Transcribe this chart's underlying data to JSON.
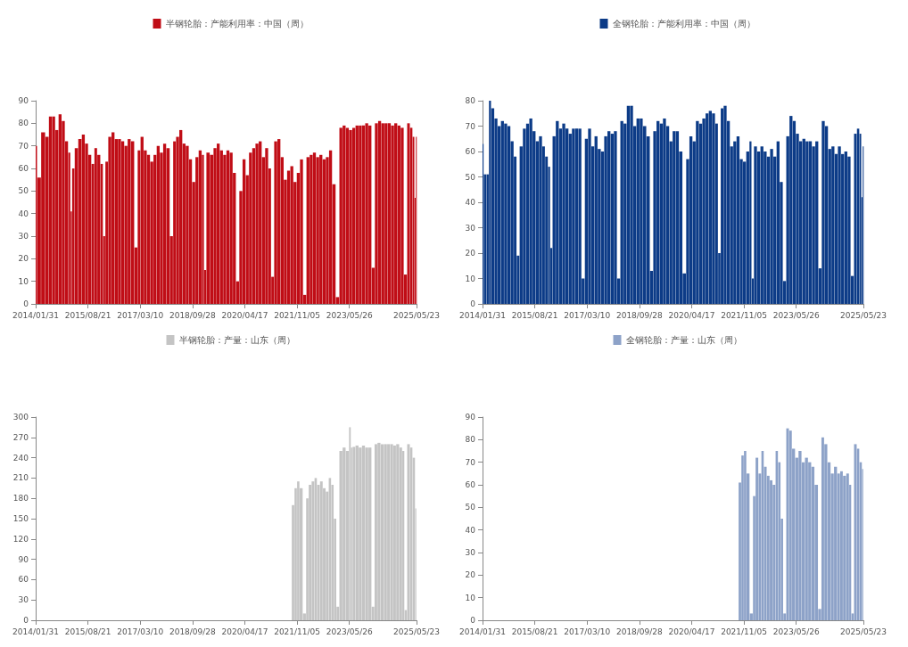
{
  "chart_data": [
    {
      "type": "bar",
      "legend": "top",
      "xlim": [
        "2014-01-31",
        "2025-05-23"
      ],
      "xticks": [
        {
          "value": "2014-01-31",
          "label": "2014/01/31"
        },
        {
          "value": "2015-08-21",
          "label": "2015/08/21"
        },
        {
          "value": "2017-03-10",
          "label": "2017/03/10"
        },
        {
          "value": "2018-09-28",
          "label": "2018/09/28"
        },
        {
          "value": "2020-04-17",
          "label": "2020/04/17"
        },
        {
          "value": "2021-11-05",
          "label": "2021/11/05"
        },
        {
          "value": "2023-05-26",
          "label": "2023/05/26"
        },
        {
          "value": "2025-05-23",
          "label": "2025/05/23"
        }
      ],
      "ylim": [
        0,
        90
      ],
      "yticks": [
        0,
        10,
        20,
        30,
        40,
        50,
        60,
        70,
        80,
        90
      ],
      "series": [
        {
          "name": "半钢轮胎：产能利用率：中国（周）",
          "color": "#c00d16",
          "x": [
            "2014-01-31",
            "2014-03-07",
            "2014-04-25",
            "2014-06-06",
            "2014-07-11",
            "2014-08-15",
            "2014-09-19",
            "2014-10-24",
            "2014-11-28",
            "2015-01-02",
            "2015-02-06",
            "2015-02-20",
            "2015-03-13",
            "2015-04-17",
            "2015-05-29",
            "2015-07-03",
            "2015-08-07",
            "2015-09-11",
            "2015-10-16",
            "2015-11-13",
            "2015-12-18",
            "2016-01-22",
            "2016-02-12",
            "2016-03-11",
            "2016-04-15",
            "2016-05-20",
            "2016-06-24",
            "2016-07-29",
            "2016-09-02",
            "2016-10-07",
            "2016-11-11",
            "2016-12-16",
            "2017-01-27",
            "2017-02-24",
            "2017-03-31",
            "2017-05-05",
            "2017-06-09",
            "2017-07-14",
            "2017-08-18",
            "2017-09-22",
            "2017-10-27",
            "2017-12-01",
            "2018-01-05",
            "2018-02-16",
            "2018-03-16",
            "2018-04-20",
            "2018-05-25",
            "2018-06-29",
            "2018-08-03",
            "2018-09-07",
            "2018-10-12",
            "2018-11-16",
            "2018-12-21",
            "2019-01-25",
            "2019-02-08",
            "2019-03-15",
            "2019-04-26",
            "2019-05-31",
            "2019-07-05",
            "2019-08-09",
            "2019-09-13",
            "2019-10-18",
            "2019-11-22",
            "2019-12-27",
            "2020-01-31",
            "2020-03-06",
            "2020-04-10",
            "2020-05-15",
            "2020-06-19",
            "2020-07-24",
            "2020-08-28",
            "2020-10-02",
            "2020-11-06",
            "2020-12-11",
            "2021-01-15",
            "2021-02-12",
            "2021-03-19",
            "2021-04-23",
            "2021-05-28",
            "2021-07-02",
            "2021-08-06",
            "2021-09-10",
            "2021-10-15",
            "2021-11-19",
            "2021-12-24",
            "2022-01-28",
            "2022-03-04",
            "2022-04-08",
            "2022-05-13",
            "2022-06-17",
            "2022-07-22",
            "2022-08-26",
            "2022-09-30",
            "2022-11-04",
            "2022-12-09",
            "2023-01-20",
            "2023-02-24",
            "2023-03-31",
            "2023-05-05",
            "2023-06-09",
            "2023-07-14",
            "2023-08-18",
            "2023-09-22",
            "2023-10-27",
            "2023-12-01",
            "2024-01-05",
            "2024-02-09",
            "2024-03-15",
            "2024-04-19",
            "2024-05-24",
            "2024-06-28",
            "2024-08-02",
            "2024-09-06",
            "2024-10-11",
            "2024-11-15",
            "2024-12-20",
            "2025-01-24",
            "2025-02-28",
            "2025-03-28",
            "2025-04-25",
            "2025-05-09",
            "2025-05-23"
          ],
          "values": [
            70,
            56,
            76,
            74,
            83,
            83,
            77,
            84,
            81,
            72,
            67,
            41,
            60,
            69,
            73,
            75,
            71,
            66,
            62,
            69,
            66,
            62,
            30,
            63,
            74,
            76,
            73,
            73,
            72,
            70,
            73,
            72,
            25,
            68,
            74,
            68,
            66,
            63,
            66,
            70,
            67,
            71,
            69,
            30,
            72,
            74,
            77,
            71,
            70,
            64,
            54,
            65,
            68,
            66,
            15,
            67,
            66,
            69,
            71,
            68,
            66,
            68,
            67,
            58,
            10,
            50,
            64,
            57,
            67,
            69,
            71,
            72,
            65,
            69,
            60,
            12,
            72,
            73,
            65,
            55,
            59,
            61,
            54,
            58,
            64,
            4,
            65,
            66,
            67,
            65,
            66,
            64,
            65,
            68,
            53,
            3,
            78,
            79,
            78,
            77,
            78,
            79,
            79,
            79,
            80,
            79,
            16,
            80,
            81,
            80,
            80,
            80,
            79,
            80,
            79,
            78,
            13,
            80,
            78,
            74,
            47,
            74
          ]
        }
      ]
    },
    {
      "type": "bar",
      "legend": "top",
      "xlim": [
        "2014-01-31",
        "2025-05-23"
      ],
      "xticks": [
        {
          "value": "2014-01-31",
          "label": "2014/01/31"
        },
        {
          "value": "2015-08-21",
          "label": "2015/08/21"
        },
        {
          "value": "2017-03-10",
          "label": "2017/03/10"
        },
        {
          "value": "2018-09-28",
          "label": "2018/09/28"
        },
        {
          "value": "2020-04-17",
          "label": "2020/04/17"
        },
        {
          "value": "2021-11-05",
          "label": "2021/11/05"
        },
        {
          "value": "2023-05-26",
          "label": "2023/05/26"
        },
        {
          "value": "2025-05-23",
          "label": "2025/05/23"
        }
      ],
      "ylim": [
        0,
        80
      ],
      "yticks": [
        0,
        10,
        20,
        30,
        40,
        50,
        60,
        70,
        80
      ],
      "series": [
        {
          "name": "全钢轮胎：产能利用率：中国（周）",
          "color": "#0c3b87",
          "x": [
            "2014-01-31",
            "2014-02-28",
            "2014-04-04",
            "2014-04-18",
            "2014-05-23",
            "2014-06-27",
            "2014-08-01",
            "2014-09-05",
            "2014-10-10",
            "2014-11-14",
            "2014-12-19",
            "2015-01-23",
            "2015-02-20",
            "2015-03-27",
            "2015-05-01",
            "2015-06-05",
            "2015-07-10",
            "2015-08-14",
            "2015-09-18",
            "2015-10-23",
            "2015-11-27",
            "2015-12-25",
            "2016-01-29",
            "2016-02-12",
            "2016-03-18",
            "2016-04-22",
            "2016-05-27",
            "2016-07-01",
            "2016-08-05",
            "2016-09-09",
            "2016-10-14",
            "2016-11-18",
            "2016-12-23",
            "2017-01-27",
            "2017-03-03",
            "2017-04-07",
            "2017-05-12",
            "2017-06-16",
            "2017-07-21",
            "2017-08-25",
            "2017-09-29",
            "2017-11-03",
            "2017-12-08",
            "2018-01-12",
            "2018-02-16",
            "2018-03-23",
            "2018-04-27",
            "2018-06-01",
            "2018-07-06",
            "2018-08-10",
            "2018-09-14",
            "2018-10-19",
            "2018-11-23",
            "2019-01-04",
            "2019-02-08",
            "2019-03-15",
            "2019-04-19",
            "2019-05-24",
            "2019-06-28",
            "2019-08-02",
            "2019-09-06",
            "2019-10-11",
            "2019-11-15",
            "2019-12-20",
            "2020-01-31",
            "2020-03-06",
            "2020-04-10",
            "2020-05-15",
            "2020-06-19",
            "2020-07-24",
            "2020-08-28",
            "2020-10-02",
            "2020-11-06",
            "2020-12-11",
            "2021-01-15",
            "2021-02-12",
            "2021-03-12",
            "2021-04-16",
            "2021-05-21",
            "2021-06-25",
            "2021-07-30",
            "2021-09-03",
            "2021-10-08",
            "2021-11-12",
            "2021-12-17",
            "2022-01-21",
            "2022-02-04",
            "2022-03-11",
            "2022-04-15",
            "2022-05-20",
            "2022-06-24",
            "2022-07-29",
            "2022-09-02",
            "2022-10-07",
            "2022-11-11",
            "2022-12-16",
            "2023-01-20",
            "2023-02-24",
            "2023-03-31",
            "2023-05-05",
            "2023-06-09",
            "2023-07-14",
            "2023-08-18",
            "2023-09-22",
            "2023-10-27",
            "2023-12-01",
            "2024-01-05",
            "2024-02-09",
            "2024-03-15",
            "2024-04-19",
            "2024-05-24",
            "2024-06-28",
            "2024-08-02",
            "2024-09-06",
            "2024-10-11",
            "2024-11-15",
            "2024-12-20",
            "2025-01-24",
            "2025-02-28",
            "2025-03-28",
            "2025-04-25",
            "2025-05-09",
            "2025-05-23"
          ],
          "values": [
            63,
            51,
            51,
            80,
            77,
            73,
            70,
            72,
            71,
            70,
            64,
            58,
            19,
            62,
            69,
            71,
            73,
            68,
            64,
            66,
            62,
            58,
            54,
            22,
            66,
            72,
            69,
            71,
            69,
            67,
            69,
            69,
            69,
            10,
            65,
            69,
            62,
            66,
            61,
            60,
            66,
            68,
            67,
            68,
            10,
            72,
            71,
            78,
            78,
            70,
            73,
            73,
            70,
            66,
            13,
            68,
            72,
            71,
            73,
            70,
            64,
            68,
            68,
            60,
            12,
            57,
            66,
            64,
            72,
            71,
            73,
            75,
            76,
            75,
            71,
            20,
            77,
            78,
            72,
            62,
            64,
            66,
            57,
            56,
            60,
            64,
            10,
            62,
            60,
            62,
            60,
            58,
            61,
            58,
            64,
            48,
            9,
            66,
            74,
            72,
            67,
            64,
            65,
            64,
            64,
            62,
            64,
            14,
            72,
            70,
            61,
            62,
            59,
            62,
            59,
            60,
            58,
            11,
            67,
            69,
            67,
            42,
            62
          ]
        }
      ]
    },
    {
      "type": "bar",
      "legend": "top",
      "xlim": [
        "2014-01-31",
        "2025-05-23"
      ],
      "xticks": [
        {
          "value": "2014-01-31",
          "label": "2014/01/31"
        },
        {
          "value": "2015-08-21",
          "label": "2015/08/21"
        },
        {
          "value": "2017-03-10",
          "label": "2017/03/10"
        },
        {
          "value": "2018-09-28",
          "label": "2018/09/28"
        },
        {
          "value": "2020-04-17",
          "label": "2020/04/17"
        },
        {
          "value": "2021-11-05",
          "label": "2021/11/05"
        },
        {
          "value": "2023-05-26",
          "label": "2023/05/26"
        },
        {
          "value": "2025-05-23",
          "label": "2025/05/23"
        }
      ],
      "ylim": [
        0,
        300
      ],
      "yticks": [
        0,
        30,
        60,
        90,
        120,
        150,
        180,
        210,
        240,
        270,
        300
      ],
      "series": [
        {
          "name": "半钢轮胎：产量：山东（周）",
          "color": "#c4c4c4",
          "x": [
            "2021-09-24",
            "2021-10-22",
            "2021-11-19",
            "2021-12-17",
            "2022-01-28",
            "2022-02-25",
            "2022-03-25",
            "2022-04-29",
            "2022-05-27",
            "2022-06-24",
            "2022-07-29",
            "2022-08-26",
            "2022-09-30",
            "2022-10-28",
            "2022-11-25",
            "2022-12-23",
            "2023-01-20",
            "2023-02-24",
            "2023-03-31",
            "2023-05-05",
            "2023-06-09",
            "2023-06-16",
            "2023-07-14",
            "2023-08-18",
            "2023-09-22",
            "2023-10-27",
            "2023-12-01",
            "2024-01-05",
            "2024-02-09",
            "2024-03-08",
            "2024-04-12",
            "2024-05-17",
            "2024-06-21",
            "2024-07-26",
            "2024-08-30",
            "2024-09-27",
            "2024-11-01",
            "2024-12-06",
            "2025-01-03",
            "2025-01-24",
            "2025-02-28",
            "2025-03-28",
            "2025-04-25",
            "2025-05-23"
          ],
          "values": [
            170,
            195,
            205,
            195,
            10,
            180,
            200,
            205,
            210,
            200,
            205,
            195,
            190,
            210,
            200,
            150,
            20,
            250,
            255,
            250,
            285,
            255,
            256,
            258,
            255,
            258,
            255,
            255,
            20,
            260,
            262,
            260,
            260,
            260,
            260,
            258,
            260,
            255,
            250,
            15,
            260,
            255,
            240,
            165
          ]
        }
      ]
    },
    {
      "type": "bar",
      "legend": "top",
      "xlim": [
        "2014-01-31",
        "2025-05-23"
      ],
      "xticks": [
        {
          "value": "2014-01-31",
          "label": "2014/01/31"
        },
        {
          "value": "2015-08-21",
          "label": "2015/08/21"
        },
        {
          "value": "2017-03-10",
          "label": "2017/03/10"
        },
        {
          "value": "2018-09-28",
          "label": "2018/09/28"
        },
        {
          "value": "2020-04-17",
          "label": "2020/04/17"
        },
        {
          "value": "2021-11-05",
          "label": "2021/11/05"
        },
        {
          "value": "2023-05-26",
          "label": "2023/05/26"
        },
        {
          "value": "2025-05-23",
          "label": "2025/05/23"
        }
      ],
      "ylim": [
        0,
        90
      ],
      "yticks": [
        0,
        10,
        20,
        30,
        40,
        50,
        60,
        70,
        80,
        90
      ],
      "series": [
        {
          "name": "全钢轮胎：产量：山东（周）",
          "color": "#8da2c8",
          "x": [
            "2021-09-24",
            "2021-10-22",
            "2021-11-19",
            "2021-12-17",
            "2022-01-28",
            "2022-02-25",
            "2022-03-25",
            "2022-04-29",
            "2022-05-27",
            "2022-06-24",
            "2022-07-29",
            "2022-08-26",
            "2022-09-30",
            "2022-10-28",
            "2022-11-25",
            "2022-12-23",
            "2023-01-20",
            "2023-02-24",
            "2023-03-24",
            "2023-04-28",
            "2023-06-02",
            "2023-07-07",
            "2023-08-11",
            "2023-09-15",
            "2023-10-20",
            "2023-11-24",
            "2023-12-29",
            "2024-02-09",
            "2024-03-08",
            "2024-04-12",
            "2024-05-17",
            "2024-06-21",
            "2024-07-26",
            "2024-08-30",
            "2024-09-27",
            "2024-11-01",
            "2024-12-06",
            "2025-01-03",
            "2025-01-24",
            "2025-02-28",
            "2025-03-28",
            "2025-04-25",
            "2025-05-23"
          ],
          "values": [
            61,
            73,
            75,
            65,
            3,
            55,
            72,
            65,
            75,
            68,
            64,
            62,
            60,
            75,
            70,
            45,
            3,
            85,
            84,
            76,
            72,
            75,
            70,
            72,
            70,
            68,
            60,
            5,
            81,
            78,
            70,
            65,
            68,
            65,
            66,
            64,
            65,
            60,
            3,
            78,
            76,
            70,
            67
          ]
        }
      ]
    }
  ]
}
